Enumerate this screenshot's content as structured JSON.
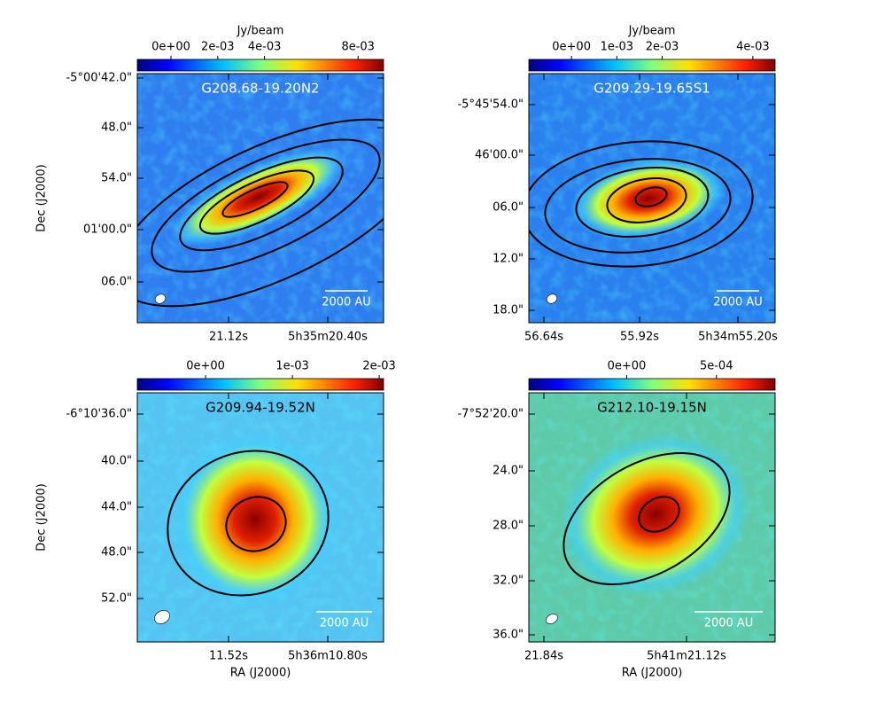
{
  "panels": [
    {
      "title": "G208.68-19.20N2",
      "colorbar": {
        "label": "Jy/beam",
        "lim": [
          -0.00144,
          0.00909
        ],
        "ticks": [
          {
            "value": 0,
            "label": "0e+00"
          },
          {
            "value": 0.002,
            "label": "2e-03"
          },
          {
            "value": 0.004,
            "label": "4e-03"
          },
          {
            "value": 0.008,
            "label": "8e-03"
          }
        ]
      },
      "yticks": [
        "-5°00'42.0\"",
        "48.0\"",
        "54.0\"",
        "01'00.0\"",
        "06.0\""
      ],
      "xticks": [
        "21.12s",
        "5h35m20.40s"
      ],
      "ylabel": "Dec (J2000)",
      "scalebar": "2000 AU"
    },
    {
      "title": "G209.29-19.65S1",
      "colorbar": {
        "label": "Jy/beam",
        "lim": [
          -0.00094,
          0.00449
        ],
        "ticks": [
          {
            "value": 0,
            "label": "0e+00"
          },
          {
            "value": 0.001,
            "label": "1e-03"
          },
          {
            "value": 0.002,
            "label": "2e-03"
          },
          {
            "value": 0.004,
            "label": "4e-03"
          }
        ]
      },
      "yticks": [
        "-5°45'54.0\"",
        "46'00.0\"",
        "06.0\"",
        "12.0\"",
        "18.0\""
      ],
      "xticks": [
        "56.64s",
        "55.92s",
        "5h34m55.20s"
      ],
      "scalebar": "2000 AU"
    },
    {
      "title": "G209.94-19.52N",
      "colorbar": {
        "lim": [
          -0.000786,
          0.00205
        ],
        "ticks": [
          {
            "value": 0,
            "label": "0e+00"
          },
          {
            "value": 0.001,
            "label": "1e-03"
          },
          {
            "value": 0.002,
            "label": "2e-03"
          }
        ]
      },
      "yticks": [
        "-6°10'36.0\"",
        "40.0\"",
        "44.0\"",
        "48.0\"",
        "52.0\""
      ],
      "xticks": [
        "11.52s",
        "5h36m10.80s"
      ],
      "ylabel": "Dec (J2000)",
      "xlabel": "RA (J2000)",
      "scalebar": "2000 AU"
    },
    {
      "title": "G212.10-19.15N",
      "colorbar": {
        "lim": [
          -0.000545,
          0.000827
        ],
        "ticks": [
          {
            "value": 0,
            "label": "0e+00"
          },
          {
            "value": 0.0005,
            "label": "5e-04"
          }
        ]
      },
      "yticks": [
        "-7°52'20.0\"",
        "24.0\"",
        "28.0\"",
        "32.0\"",
        "36.0\""
      ],
      "xticks": [
        "21.84s",
        "5h41m21.12s"
      ],
      "xlabel": "RA (J2000)",
      "scalebar": "2000 AU"
    }
  ]
}
